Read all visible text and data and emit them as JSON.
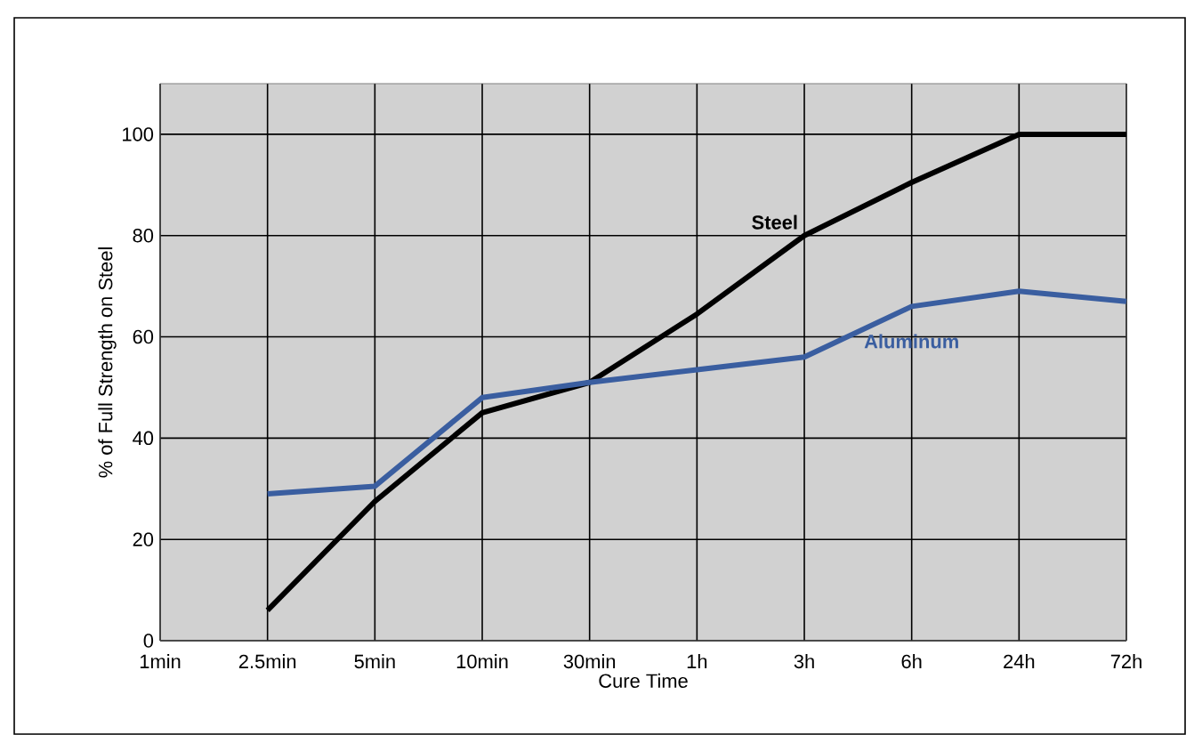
{
  "chart_data": {
    "type": "line",
    "xlabel": "Cure Time",
    "ylabel": "% of Full Strength on Steel",
    "categories": [
      "1min",
      "2.5min",
      "5min",
      "10min",
      "30min",
      "1h",
      "3h",
      "6h",
      "24h",
      "72h"
    ],
    "series": [
      {
        "name": "Steel",
        "color": "#000000",
        "values": [
          null,
          6,
          27.5,
          45,
          51,
          64.5,
          80,
          90.5,
          100,
          100
        ]
      },
      {
        "name": "Aluminum",
        "color": "#3a5ea0",
        "values": [
          null,
          29,
          30.5,
          48,
          51,
          53.5,
          56,
          66,
          69,
          67
        ]
      }
    ],
    "ylim": [
      0,
      110
    ],
    "yticks": [
      0,
      20,
      40,
      60,
      80,
      100
    ],
    "grid": true,
    "marker": "none",
    "line_style": "solid"
  }
}
